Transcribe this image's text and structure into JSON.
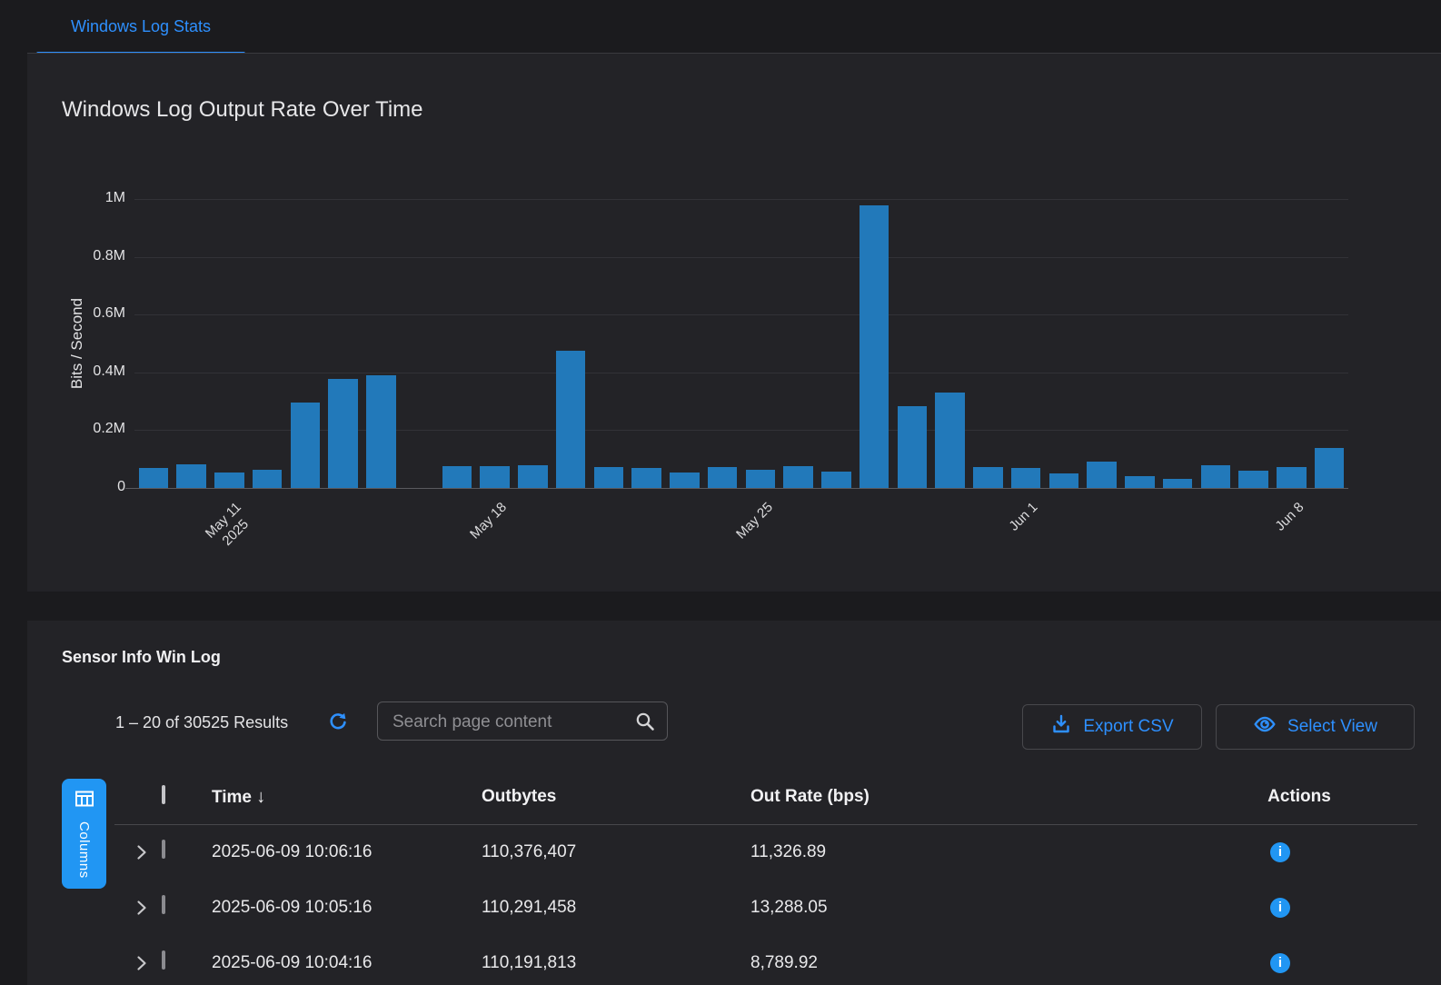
{
  "tabs": {
    "active_label": "Windows Log Stats"
  },
  "chart_data": {
    "type": "bar",
    "title": "Windows Log Output Rate Over Time",
    "xlabel": "",
    "ylabel": "Bits / Second",
    "ylim": [
      0,
      1000000
    ],
    "grid": true,
    "legend": false,
    "bar_color": "#2279ba",
    "x": [
      "May 9",
      "May 10",
      "May 11",
      "May 12",
      "May 13",
      "May 14",
      "May 15",
      "May 16",
      "May 17",
      "May 18",
      "May 19",
      "May 20",
      "May 21",
      "May 22",
      "May 23",
      "May 24",
      "May 25",
      "May 26",
      "May 27",
      "May 28",
      "May 29",
      "May 30",
      "May 31",
      "Jun 1",
      "Jun 2",
      "Jun 3",
      "Jun 4",
      "Jun 5",
      "Jun 6",
      "Jun 7",
      "Jun 8",
      "Jun 9"
    ],
    "values": [
      69000,
      82000,
      54000,
      63000,
      297000,
      377000,
      391000,
      0,
      76000,
      76000,
      79000,
      474000,
      71000,
      68000,
      55000,
      71000,
      63000,
      77000,
      58000,
      978000,
      282000,
      331000,
      71000,
      70000,
      50000,
      92000,
      40000,
      32000,
      78000,
      59000,
      71000,
      138000
    ],
    "yticks": [
      {
        "value": 0,
        "label": "0"
      },
      {
        "value": 200000,
        "label": "0.2M"
      },
      {
        "value": 400000,
        "label": "0.4M"
      },
      {
        "value": 600000,
        "label": "0.6M"
      },
      {
        "value": 800000,
        "label": "0.8M"
      },
      {
        "value": 1000000,
        "label": "1M"
      }
    ],
    "xticks": [
      {
        "index": 2,
        "lines": [
          "May 11",
          "2025"
        ]
      },
      {
        "index": 9,
        "lines": [
          "May 18"
        ]
      },
      {
        "index": 16,
        "lines": [
          "May 25"
        ]
      },
      {
        "index": 23,
        "lines": [
          "Jun 1"
        ]
      },
      {
        "index": 30,
        "lines": [
          "Jun 8"
        ]
      }
    ]
  },
  "table": {
    "heading": "Sensor Info Win Log",
    "results_summary": "1 – 20 of 30525 Results",
    "search": {
      "placeholder": "Search page content",
      "value": ""
    },
    "buttons": {
      "export": "Export CSV",
      "select_view": "Select View",
      "columns": "Columns"
    },
    "columns": {
      "time": "Time",
      "outbytes": "Outbytes",
      "out_rate": "Out Rate (bps)",
      "actions": "Actions"
    },
    "sort": {
      "column": "Time",
      "direction": "desc",
      "glyph": "↓"
    },
    "rows": [
      {
        "time": "2025-06-09 10:06:16",
        "outbytes": "110,376,407",
        "out_rate": "11,326.89"
      },
      {
        "time": "2025-06-09 10:05:16",
        "outbytes": "110,291,458",
        "out_rate": "13,288.05"
      },
      {
        "time": "2025-06-09 10:04:16",
        "outbytes": "110,191,813",
        "out_rate": "8,789.92"
      }
    ]
  },
  "icons": {
    "info_glyph": "i"
  },
  "colors": {
    "page_bg": "#1b1b1e",
    "panel_bg": "#232327",
    "accent_blue": "#2e90ff",
    "bar_blue": "#2279ba",
    "info_blue": "#2196f3",
    "columns_button_blue": "#2196f3",
    "gridline": "#323237",
    "border_gray": "#48484c"
  }
}
